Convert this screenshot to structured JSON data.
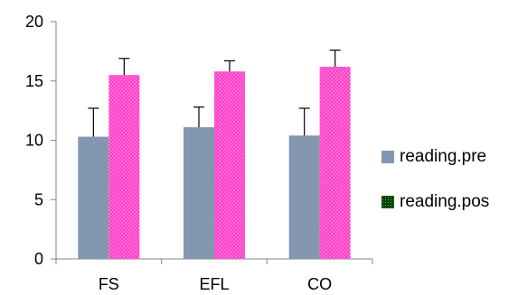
{
  "chart_data": {
    "type": "bar",
    "title": "",
    "xlabel": "",
    "ylabel": "",
    "categories": [
      "FS",
      "EFL",
      "CO"
    ],
    "ylim": [
      0,
      20
    ],
    "yticks": [
      "0",
      "5",
      "10",
      "15",
      "20"
    ],
    "legend_position": "right",
    "series": [
      {
        "name": "reading.pre",
        "color": "#8497B0",
        "values": [
          10.3,
          11.1,
          10.4
        ],
        "error": [
          2.4,
          1.7,
          2.3
        ]
      },
      {
        "name": "reading.pos",
        "color": "#FF3EC8",
        "values": [
          15.5,
          15.8,
          16.2
        ],
        "error": [
          1.4,
          0.9,
          1.4
        ]
      }
    ]
  }
}
